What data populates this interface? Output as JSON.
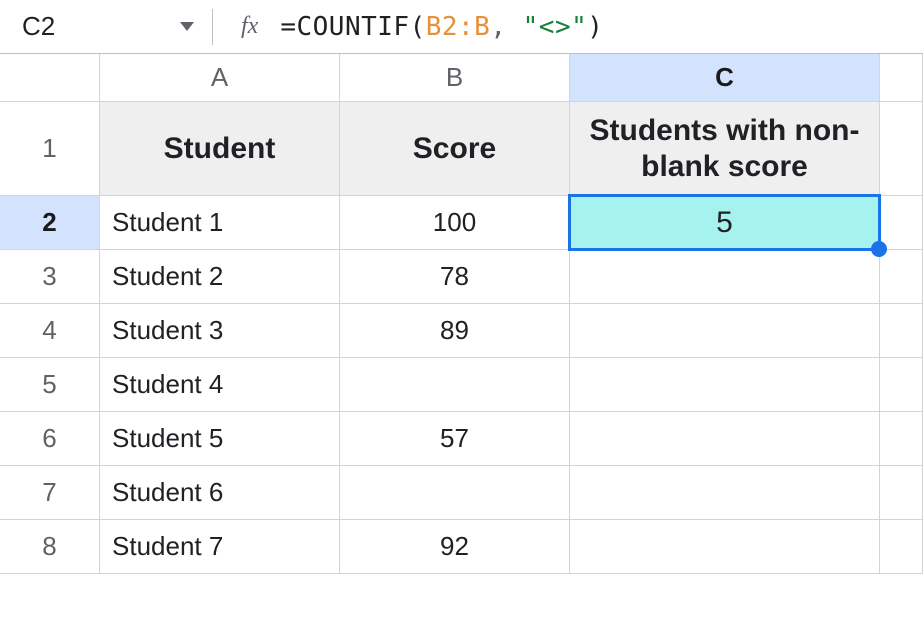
{
  "name_box": "C2",
  "formula": {
    "raw": "=COUNTIF(B2:B, \"<>\")",
    "prefix": "=",
    "fn": "COUNTIF",
    "open": "(",
    "range": "B2:B",
    "comma_sp": ", ",
    "str": "\"<>\"",
    "close": ")"
  },
  "columns": [
    "A",
    "B",
    "C"
  ],
  "selected_column_index": 2,
  "selected_row": 2,
  "headers": {
    "A": "Student",
    "B": "Score",
    "C": "Students with non-blank score"
  },
  "rows": [
    {
      "n": 2,
      "A": "Student 1",
      "B": "100",
      "C": "5"
    },
    {
      "n": 3,
      "A": "Student 2",
      "B": "78",
      "C": ""
    },
    {
      "n": 4,
      "A": "Student 3",
      "B": "89",
      "C": ""
    },
    {
      "n": 5,
      "A": "Student 4",
      "B": "",
      "C": ""
    },
    {
      "n": 6,
      "A": "Student 5",
      "B": "57",
      "C": ""
    },
    {
      "n": 7,
      "A": "Student 6",
      "B": "",
      "C": ""
    },
    {
      "n": 8,
      "A": "Student 7",
      "B": "92",
      "C": ""
    }
  ],
  "colors": {
    "formula_range": "#E69138",
    "formula_string": "#188038",
    "selection_border": "#1a73e8",
    "selection_fill": "#a6f2ee",
    "header_fill": "#efefef",
    "sel_header_fill": "#d3e3fd"
  }
}
